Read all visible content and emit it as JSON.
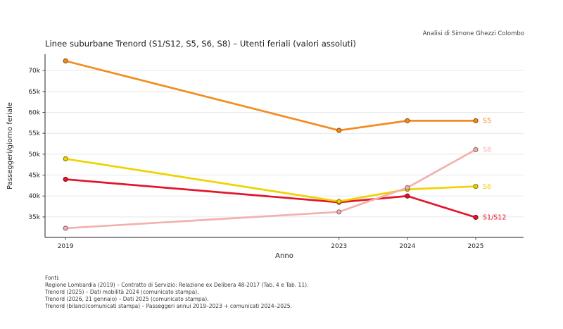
{
  "title": "Linee suburbane Trenord (S1/S12, S5, S6, S8) – Utenti feriali (valori assoluti)",
  "annotation": "Analisi di Simone Ghezzi Colombo",
  "chart_data": {
    "type": "line",
    "x": [
      2019,
      2023,
      2024,
      2025
    ],
    "xlabel": "Anno",
    "ylabel": "Passeggeri/giorno feriale",
    "xlim": [
      2018.7,
      2025.7
    ],
    "ylim": [
      30100,
      73900
    ],
    "xticks": [
      2019,
      2023,
      2024,
      2025
    ],
    "xtick_labels": [
      "2019",
      "2023",
      "2024",
      "2025"
    ],
    "yticks": [
      35000,
      40000,
      45000,
      50000,
      55000,
      60000,
      65000,
      70000
    ],
    "ytick_labels": [
      "35k",
      "40k",
      "45k",
      "50k",
      "55k",
      "60k",
      "65k",
      "70k"
    ],
    "grid": true,
    "legend_position": "end-of-line-labels",
    "series": [
      {
        "name": "S1/S12",
        "color": "#e3152c",
        "values": [
          44000,
          38500,
          40000,
          34900
        ]
      },
      {
        "name": "S6",
        "color": "#f0d202",
        "values": [
          48900,
          38700,
          41600,
          42300
        ]
      },
      {
        "name": "S8",
        "color": "#f2b1ae",
        "values": [
          32300,
          36200,
          42000,
          51100
        ]
      },
      {
        "name": "S5",
        "color": "#f28b20",
        "values": [
          72300,
          55700,
          58000,
          58000
        ]
      }
    ]
  },
  "colors": {
    "grid": "#e7e7e7",
    "spine": "#4a4a4a",
    "tick_label": "#262626",
    "footer_text": "#3a3a3a"
  },
  "footer": {
    "lines": [
      "Fonti:",
      "Regione Lombardia (2019) – Contratto di Servizio: Relazione ex Delibera 48-2017 (Tab. 4 e Tab. 11).",
      "Trenord (2025) – Dati mobilità 2024 (comunicato stampa).",
      "Trenord (2026, 21 gennaio) – Dati 2025 (comunicato stampa).",
      "Trenord (bilanci/comunicati stampa) – Passeggeri annui 2019–2023 + comunicati 2024–2025."
    ]
  }
}
